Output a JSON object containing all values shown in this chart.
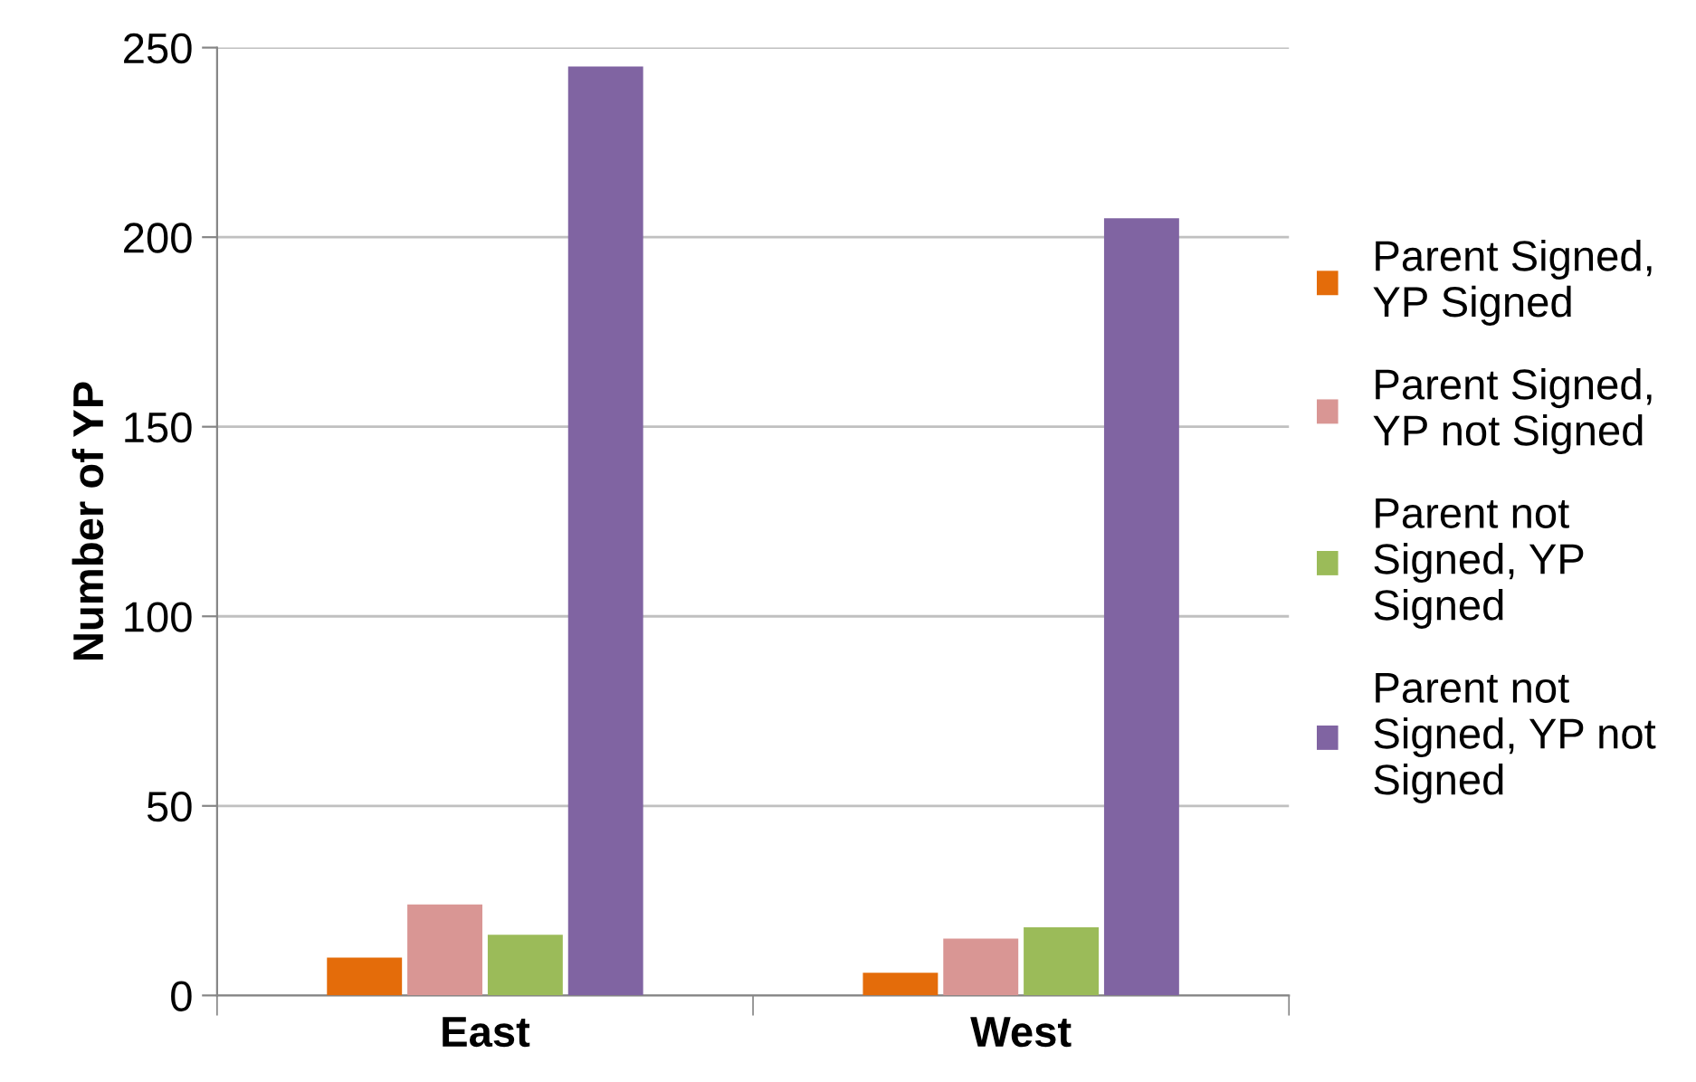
{
  "chart_data": {
    "type": "bar",
    "ylabel": "Number of YP",
    "categories": [
      "East",
      "West"
    ],
    "series": [
      {
        "name": "Parent Signed, YP Signed",
        "color": "#e46c0a",
        "values": [
          10,
          6
        ]
      },
      {
        "name": "Parent Signed, YP not Signed",
        "color": "#d99694",
        "values": [
          24,
          15
        ]
      },
      {
        "name": "Parent not Signed, YP Signed",
        "color": "#9bbb59",
        "values": [
          16,
          18
        ]
      },
      {
        "name": "Parent not Signed, YP not Signed",
        "color": "#8064a2",
        "values": [
          245,
          205
        ]
      }
    ],
    "ylim": [
      0,
      250
    ],
    "yticks": [
      0,
      50,
      100,
      150,
      200,
      250
    ],
    "grid": "y",
    "legend": "right"
  }
}
